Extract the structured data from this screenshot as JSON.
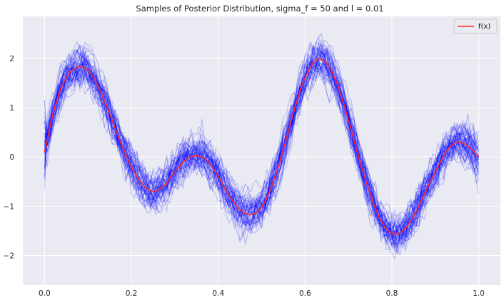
{
  "chart_data": {
    "type": "line",
    "title": "Samples of Posterior Distribution, sigma_f = 50 and l = 0.01",
    "xlabel": "",
    "ylabel": "",
    "xlim": [
      -0.05,
      1.05
    ],
    "ylim": [
      -2.6,
      2.85
    ],
    "xticks": [
      0.0,
      0.2,
      0.4,
      0.6,
      0.8,
      1.0
    ],
    "xtick_labels": [
      "0.0",
      "0.2",
      "0.4",
      "0.6",
      "0.8",
      "1.0"
    ],
    "yticks": [
      -2,
      -1,
      0,
      1,
      2
    ],
    "ytick_labels": [
      "−2",
      "−1",
      "0",
      "1",
      "2"
    ],
    "grid": true,
    "legend_position": "top-right",
    "series": [
      {
        "name": "f(x)",
        "color": "#ff2a2a",
        "x": [
          0.0,
          0.025,
          0.05,
          0.075,
          0.1,
          0.125,
          0.15,
          0.175,
          0.2,
          0.225,
          0.25,
          0.275,
          0.3,
          0.325,
          0.35,
          0.375,
          0.4,
          0.425,
          0.45,
          0.475,
          0.5,
          0.525,
          0.55,
          0.575,
          0.6,
          0.625,
          0.65,
          0.675,
          0.7,
          0.725,
          0.75,
          0.775,
          0.8,
          0.825,
          0.85,
          0.875,
          0.9,
          0.925,
          0.95,
          0.975,
          1.0
        ],
        "y": [
          0.1,
          1.05,
          1.6,
          1.82,
          1.75,
          1.4,
          0.88,
          0.3,
          -0.2,
          -0.55,
          -0.7,
          -0.58,
          -0.3,
          -0.06,
          0.02,
          -0.08,
          -0.4,
          -0.78,
          -1.07,
          -1.17,
          -1.02,
          -0.55,
          0.15,
          0.95,
          1.6,
          1.96,
          1.9,
          1.45,
          0.75,
          -0.05,
          -0.75,
          -1.3,
          -1.55,
          -1.5,
          -1.2,
          -0.75,
          -0.3,
          0.1,
          0.3,
          0.22,
          0.0
        ]
      }
    ],
    "samples": {
      "color": "#0000ff",
      "description_count": 50
    }
  }
}
